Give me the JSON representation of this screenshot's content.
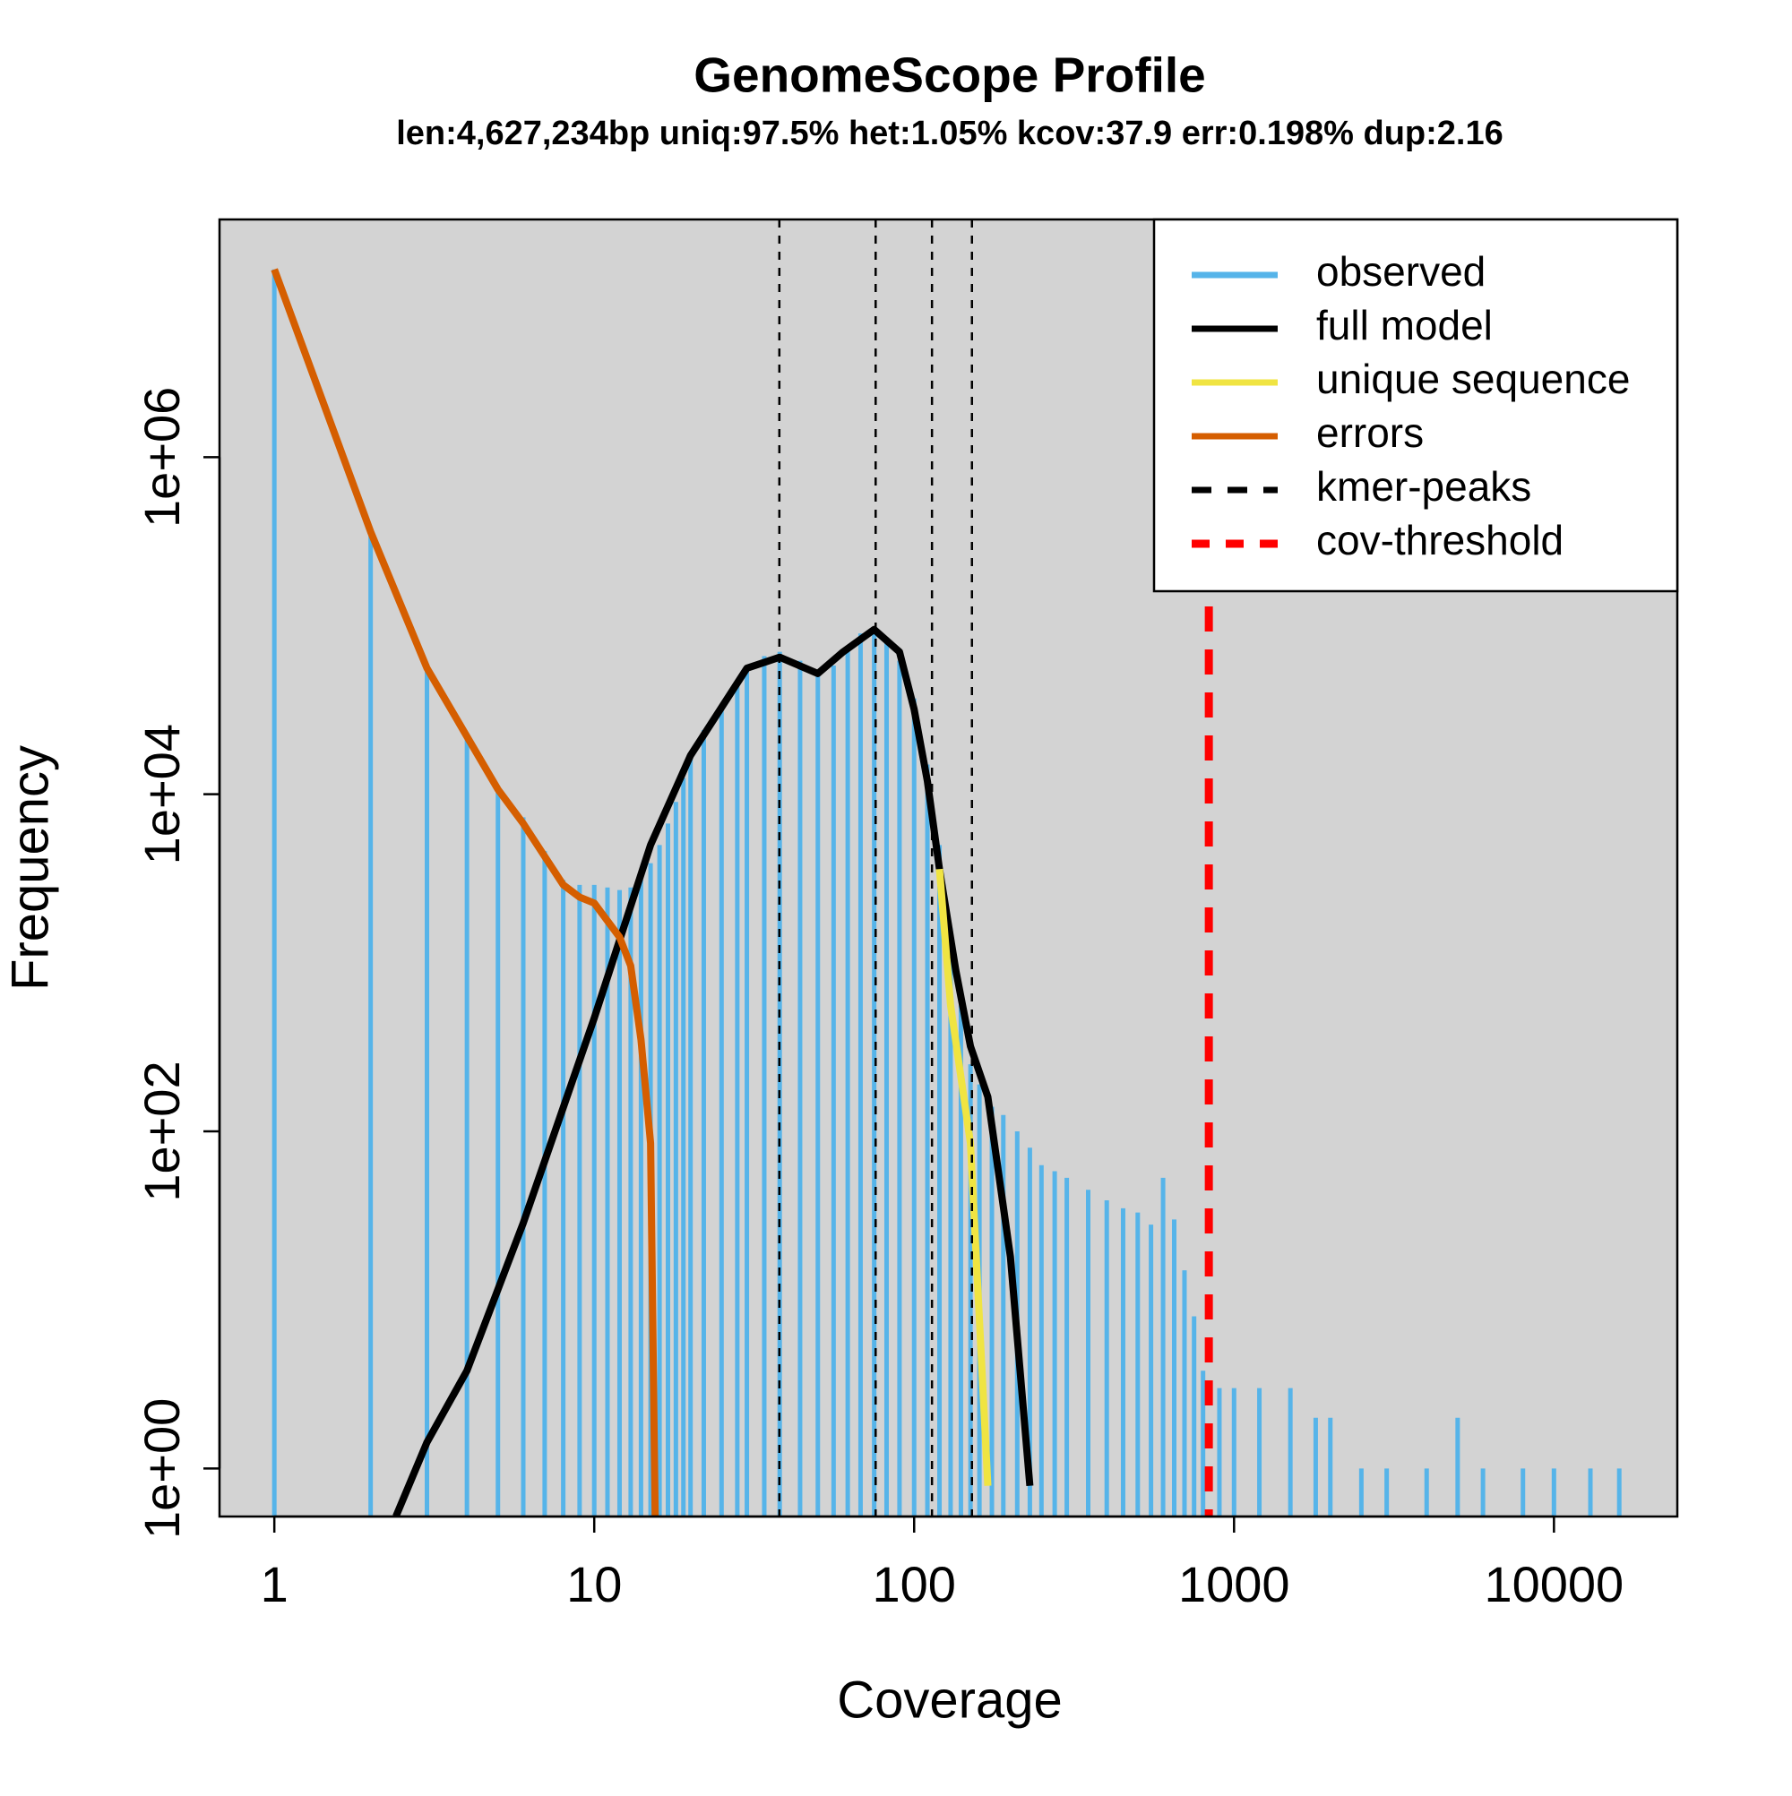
{
  "chart_data": {
    "type": "line",
    "title": "GenomeScope Profile",
    "subtitle": "len:4,627,234bp uniq:97.5% het:1.05% kcov:37.9 err:0.198% dup:2.16",
    "x_label": "Coverage",
    "y_label": "Frequency",
    "log_x": true,
    "log_y": true,
    "background": "#d3d3d3",
    "legend": "top-right",
    "xlim": [
      0.674,
      24300
    ],
    "ylim": [
      0.519,
      25700000
    ],
    "xticks": [
      1,
      10,
      100,
      1000,
      10000
    ],
    "yticks": [
      {
        "value": 1,
        "label": "1e+00"
      },
      {
        "value": 100,
        "label": "1e+02"
      },
      {
        "value": 10000,
        "label": "1e+04"
      },
      {
        "value": 1000000,
        "label": "1e+06"
      }
    ],
    "series": [
      {
        "name": "observed",
        "color": "#56B4E9",
        "kind": "spikes",
        "x": [
          1,
          2,
          3,
          4,
          5,
          6,
          7,
          8,
          9,
          10,
          11,
          12,
          13,
          14,
          15,
          16,
          17,
          18,
          19,
          20,
          22,
          25,
          28,
          30,
          34,
          38,
          44,
          50,
          56,
          62,
          68,
          75,
          82,
          90,
          100,
          110,
          120,
          130,
          140,
          150,
          160,
          175,
          190,
          210,
          230,
          250,
          275,
          300,
          350,
          400,
          450,
          500,
          550,
          600,
          650,
          700,
          750,
          800,
          900,
          1000,
          1200,
          1500,
          1800,
          2000,
          2500,
          3000,
          4000,
          5000,
          6000,
          8000,
          10000,
          13000,
          16000
        ],
        "values": [
          13000000,
          360000,
          56000,
          22000,
          10700,
          7300,
          4600,
          3100,
          2900,
          2900,
          2800,
          2700,
          2800,
          3100,
          3900,
          5000,
          6700,
          9000,
          12500,
          17000,
          24000,
          32000,
          45000,
          56000,
          66000,
          70000,
          62000,
          52000,
          58000,
          75000,
          90000,
          95000,
          85000,
          62000,
          37000,
          15000,
          5000,
          1600,
          560,
          250,
          190,
          140,
          125,
          100,
          80,
          63,
          58,
          53,
          45,
          39,
          35,
          33,
          28,
          53,
          30,
          15,
          8,
          3.8,
          3,
          3,
          3,
          3,
          2,
          2,
          1,
          1,
          1,
          2,
          1,
          1,
          1,
          1,
          1
        ]
      },
      {
        "name": "full model",
        "color": "#000000",
        "kind": "line",
        "x": [
          2.4,
          3,
          4,
          6,
          10,
          15,
          20,
          30,
          38,
          50,
          60,
          75,
          90,
          100,
          110,
          120,
          135,
          150,
          170,
          200,
          230
        ],
        "values": [
          0.52,
          1.43,
          3.8,
          28.6,
          470,
          5000,
          17000,
          56000,
          65000,
          52000,
          70000,
          95000,
          70000,
          32000,
          12000,
          3600,
          900,
          320,
          160,
          18,
          0.79
        ]
      },
      {
        "name": "unique sequence",
        "color": "#F0E442",
        "kind": "line",
        "x": [
          120,
          130,
          150,
          170
        ],
        "values": [
          3600,
          560,
          85,
          0.79
        ]
      },
      {
        "name": "errors",
        "color": "#D55E00",
        "kind": "line",
        "x": [
          1,
          2,
          3,
          4,
          5,
          6,
          8,
          9,
          10,
          12,
          13,
          14,
          15,
          15.5
        ],
        "values": [
          13000000,
          360000,
          56000,
          22000,
          10700,
          6700,
          2900,
          2450,
          2260,
          1420,
          960,
          350,
          85,
          0.52
        ]
      },
      {
        "name": "kmer-peaks",
        "color": "#000000",
        "kind": "vline",
        "dash": "9 9",
        "values": [
          37.9,
          75.8,
          113.7,
          151.6
        ]
      },
      {
        "name": "cov-threshold",
        "color": "#FF0000",
        "kind": "vline",
        "dash": "28 20",
        "values": [
          834
        ]
      }
    ]
  }
}
